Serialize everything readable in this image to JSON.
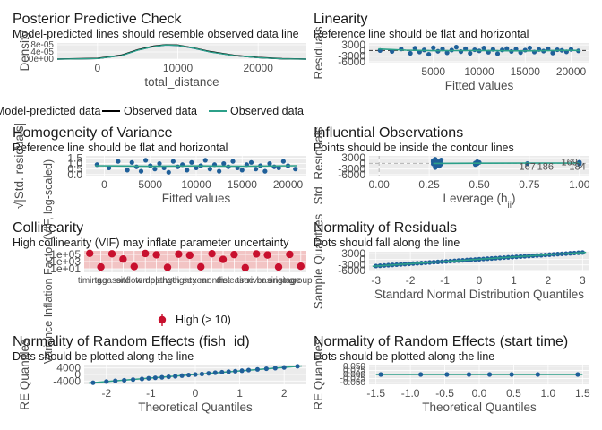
{
  "chart_data": [
    {
      "type": "line",
      "title": "Posterior Predictive Check",
      "subtitle": "Model-predicted lines should resemble observed data line",
      "xlabel": "total_distance",
      "ylabel": "Density",
      "x_ticks": [
        "0",
        "10000",
        "20000"
      ],
      "y_ticks": [
        "0e+00",
        "4e-05",
        "8e-05"
      ],
      "xlim": [
        -5000,
        26000
      ],
      "ylim": [
        0,
        9e-05
      ],
      "legend": [
        "Model-predicted data",
        "Observed data",
        "Observed data"
      ],
      "legend_position": "bottom",
      "series": [
        {
          "name": "Model-predicted data",
          "color": "#1f77b4",
          "x": [
            -5000,
            0,
            3000,
            5000,
            7000,
            8500,
            10000,
            12000,
            14000,
            17000,
            20000,
            23000,
            26000
          ],
          "y": [
            0,
            3e-06,
            2e-05,
            5e-05,
            7e-05,
            7.8e-05,
            7.6e-05,
            6e-05,
            4e-05,
            2e-05,
            8e-06,
            2e-06,
            0
          ]
        },
        {
          "name": "Observed data",
          "color": "#000000",
          "x": [
            -5000,
            0,
            3000,
            5000,
            7000,
            8500,
            10000,
            12000,
            14000,
            17000,
            20000,
            23000,
            26000
          ],
          "y": [
            0,
            4e-06,
            2.2e-05,
            5.2e-05,
            7.2e-05,
            8e-05,
            7.8e-05,
            6.2e-05,
            4.2e-05,
            2.1e-05,
            9e-06,
            2e-06,
            0
          ]
        },
        {
          "name": "Observed data",
          "color": "#2ca089",
          "x": [
            -5000,
            0,
            3000,
            5000,
            7000,
            8500,
            10000,
            12000,
            14000,
            17000,
            20000,
            23000,
            26000
          ],
          "y": [
            0,
            3e-06,
            2e-05,
            5e-05,
            7e-05,
            7.9e-05,
            7.7e-05,
            6.1e-05,
            4e-05,
            2e-05,
            8e-06,
            2e-06,
            0
          ]
        }
      ]
    },
    {
      "type": "scatter",
      "title": "Linearity",
      "subtitle": "Reference line should be flat and horizontal",
      "xlabel": "Fitted values",
      "ylabel": "Residuals",
      "x_ticks": [
        "5000",
        "10000",
        "15000",
        "20000"
      ],
      "y_ticks": [
        "-6000",
        "-3000",
        "0",
        "3000"
      ],
      "xlim": [
        -2000,
        22000
      ],
      "ylim": [
        -6500,
        4000
      ],
      "point_color": "#1f5f99",
      "line_color": "#2ca089",
      "points": [
        [
          -800,
          0
        ],
        [
          500,
          -500
        ],
        [
          1500,
          800
        ],
        [
          2500,
          -1500
        ],
        [
          3000,
          1200
        ],
        [
          3500,
          -800
        ],
        [
          4000,
          300
        ],
        [
          4500,
          -2000
        ],
        [
          5000,
          1500
        ],
        [
          5500,
          -400
        ],
        [
          6000,
          800
        ],
        [
          6500,
          -1200
        ],
        [
          7000,
          200
        ],
        [
          7500,
          1800
        ],
        [
          8000,
          -600
        ],
        [
          8500,
          900
        ],
        [
          9000,
          -1500
        ],
        [
          9500,
          400
        ],
        [
          10000,
          -200
        ],
        [
          10500,
          1300
        ],
        [
          11000,
          -900
        ],
        [
          11500,
          600
        ],
        [
          12000,
          -1700
        ],
        [
          12500,
          300
        ],
        [
          13000,
          1000
        ],
        [
          13500,
          -500
        ],
        [
          14000,
          700
        ],
        [
          14500,
          -1100
        ],
        [
          15000,
          200
        ],
        [
          15500,
          1400
        ],
        [
          16000,
          -800
        ],
        [
          16500,
          500
        ],
        [
          17000,
          -300
        ],
        [
          17500,
          900
        ],
        [
          18000,
          -1300
        ],
        [
          18500,
          400
        ],
        [
          19000,
          100
        ],
        [
          19500,
          -700
        ],
        [
          20000,
          600
        ],
        [
          20800,
          -200
        ]
      ],
      "smooth": [
        [
          -1000,
          800
        ],
        [
          2000,
          200
        ],
        [
          5000,
          -100
        ],
        [
          10000,
          0
        ],
        [
          15000,
          -200
        ],
        [
          20000,
          100
        ],
        [
          21000,
          0
        ]
      ]
    },
    {
      "type": "scatter",
      "title": "Homogeneity of Variance",
      "subtitle": "Reference line should be flat and horizontal",
      "xlabel": "Fitted values",
      "ylabel": "√|Std. residuals|",
      "x_ticks": [
        "0",
        "5000",
        "10000",
        "15000",
        "20000"
      ],
      "y_ticks": [
        "0.0",
        "0.5",
        "1.0",
        "1.5"
      ],
      "xlim": [
        -2000,
        22000
      ],
      "ylim": [
        -0.1,
        1.7
      ],
      "point_color": "#1f5f99",
      "line_color": "#2ca089",
      "points": [
        [
          -800,
          0.9
        ],
        [
          500,
          0.6
        ],
        [
          1500,
          1.2
        ],
        [
          2500,
          0.4
        ],
        [
          3000,
          1.1
        ],
        [
          3500,
          0.7
        ],
        [
          4000,
          0.3
        ],
        [
          4500,
          1.3
        ],
        [
          5000,
          0.8
        ],
        [
          5500,
          0.5
        ],
        [
          6000,
          1.0
        ],
        [
          6500,
          0.6
        ],
        [
          7000,
          0.2
        ],
        [
          7500,
          1.2
        ],
        [
          8000,
          0.7
        ],
        [
          8500,
          0.9
        ],
        [
          9000,
          0.4
        ],
        [
          9500,
          1.1
        ],
        [
          10000,
          0.6
        ],
        [
          10500,
          0.8
        ],
        [
          11000,
          1.3
        ],
        [
          11500,
          0.5
        ],
        [
          12000,
          0.9
        ],
        [
          12500,
          0.3
        ],
        [
          13000,
          1.0
        ],
        [
          13500,
          0.7
        ],
        [
          14000,
          1.2
        ],
        [
          14500,
          0.6
        ],
        [
          15000,
          0.4
        ],
        [
          15500,
          0.9
        ],
        [
          16000,
          1.1
        ],
        [
          16500,
          0.5
        ],
        [
          17000,
          0.8
        ],
        [
          17500,
          0.3
        ],
        [
          18000,
          1.0
        ],
        [
          18500,
          0.7
        ],
        [
          19000,
          0.6
        ],
        [
          19500,
          1.2
        ],
        [
          20000,
          0.8
        ],
        [
          20800,
          0.5
        ]
      ],
      "smooth": [
        [
          -1000,
          0.8
        ],
        [
          5000,
          0.75
        ],
        [
          10000,
          0.78
        ],
        [
          15000,
          0.76
        ],
        [
          21000,
          0.8
        ]
      ]
    },
    {
      "type": "scatter",
      "title": "Influential Observations",
      "subtitle": "Points should be inside the contour lines",
      "xlabel": "Leverage (h",
      "xlabel_sub": "ii",
      "xlabel_end": ")",
      "ylabel": "Std. Residuals",
      "x_ticks": [
        "0.00",
        "0.25",
        "0.50",
        "0.75",
        "1.00"
      ],
      "y_ticks": [
        "-6000",
        "-3000",
        "0",
        "3000"
      ],
      "xlim": [
        -0.05,
        1.05
      ],
      "ylim": [
        -6500,
        4000
      ],
      "point_color": "#1f5f99",
      "line_color": "#2ca089",
      "contour_color": "#b3b3b3",
      "points": [
        [
          0.27,
          800
        ],
        [
          0.27,
          -300
        ],
        [
          0.27,
          1500
        ],
        [
          0.28,
          -1200
        ],
        [
          0.28,
          400
        ],
        [
          0.28,
          2200
        ],
        [
          0.28,
          -2200
        ],
        [
          0.29,
          0
        ],
        [
          0.29,
          1100
        ],
        [
          0.29,
          -700
        ],
        [
          0.3,
          300
        ],
        [
          0.3,
          -1500
        ],
        [
          0.31,
          1800
        ],
        [
          0.31,
          -400
        ],
        [
          0.48,
          200
        ],
        [
          0.48,
          -600
        ],
        [
          0.49,
          900
        ],
        [
          0.49,
          -200
        ],
        [
          0.5,
          500
        ],
        [
          0.74,
          -100
        ],
        [
          1.0,
          600
        ],
        [
          1.0,
          -300
        ],
        [
          1.0,
          200
        ]
      ],
      "smooth": [
        [
          0.27,
          0
        ],
        [
          0.5,
          100
        ],
        [
          0.75,
          150
        ],
        [
          1.0,
          200
        ]
      ],
      "labels": [
        {
          "text": "167",
          "x": 0.74,
          "y": -1500,
          "color": "#1f5f99"
        },
        {
          "text": "186",
          "x": 0.83,
          "y": -1500,
          "color": "#d7301f"
        },
        {
          "text": "169",
          "x": 0.95,
          "y": 1000,
          "color": "#d7301f"
        },
        {
          "text": "184",
          "x": 0.99,
          "y": -1500,
          "color": "#d7301f"
        }
      ]
    },
    {
      "type": "scatter",
      "title": "Collinearity",
      "subtitle": "High collinearity (VIF) may inflate parameter uncertainty",
      "xlabel": "",
      "ylabel": "Variance Inflation Factor (VIF, log-scaled)",
      "y_ticks": [
        "1e+01",
        "1e+03",
        "1e+05"
      ],
      "y_scale": "log",
      "ylim": [
        1,
        1000000
      ],
      "band_color": "#f2c4c4",
      "point_color": "#c8102e",
      "legend": [
        "High (≥ 10)"
      ],
      "legend_position": "bottom",
      "categories": [
        "timing",
        "tag",
        "season",
        "site",
        "flow",
        "temp",
        "depth",
        "length",
        "weight",
        "sex",
        "year",
        "month",
        "dist",
        "release",
        "time",
        "river",
        "basin",
        "origin",
        "stage",
        "group"
      ],
      "values": [
        200000,
        30,
        150000,
        5000,
        40,
        180000,
        80000,
        25,
        120000,
        60000,
        35,
        160000,
        4000,
        90000,
        20,
        140000,
        70000,
        30,
        100000,
        50
      ]
    },
    {
      "type": "scatter",
      "title": "Normality of Residuals",
      "subtitle": "Dots should fall along the line",
      "xlabel": "Standard Normal Distribution Quantiles",
      "ylabel": "Sample Quantiles",
      "x_ticks": [
        "-3",
        "-2",
        "-1",
        "0",
        "1",
        "2",
        "3"
      ],
      "y_ticks": [
        "-6000",
        "-3000",
        "0",
        "3000"
      ],
      "xlim": [
        -3.2,
        3.2
      ],
      "ylim": [
        -6500,
        4000
      ],
      "point_color": "#1f5f99",
      "line_color": "#2ca089"
    },
    {
      "type": "scatter",
      "title": "Normality of Random Effects (fish_id)",
      "subtitle": "Dots should be plotted along the line",
      "xlabel": "Theoretical Quantiles",
      "ylabel": "RE Quantiles",
      "x_ticks": [
        "-2",
        "-1",
        "0",
        "1",
        "2"
      ],
      "y_ticks": [
        "-4000",
        "0",
        "4000"
      ],
      "xlim": [
        -2.5,
        2.5
      ],
      "ylim": [
        -6000,
        6000
      ],
      "point_color": "#1f5f99",
      "line_color": "#2ca089",
      "points": [
        [
          -2.3,
          -5000
        ],
        [
          -2,
          -4300
        ],
        [
          -1.8,
          -3900
        ],
        [
          -1.6,
          -3500
        ],
        [
          -1.4,
          -3100
        ],
        [
          -1.2,
          -2700
        ],
        [
          -1.05,
          -2300
        ],
        [
          -0.9,
          -2000
        ],
        [
          -0.75,
          -1700
        ],
        [
          -0.6,
          -1400
        ],
        [
          -0.45,
          -1100
        ],
        [
          -0.3,
          -700
        ],
        [
          -0.15,
          -300
        ],
        [
          0,
          0
        ],
        [
          0.15,
          300
        ],
        [
          0.3,
          700
        ],
        [
          0.45,
          1100
        ],
        [
          0.6,
          1400
        ],
        [
          0.75,
          1700
        ],
        [
          0.9,
          2000
        ],
        [
          1.05,
          2300
        ],
        [
          1.2,
          2700
        ],
        [
          1.4,
          3100
        ],
        [
          1.6,
          3500
        ],
        [
          1.8,
          3900
        ],
        [
          2,
          4300
        ],
        [
          2.3,
          5000
        ]
      ]
    },
    {
      "type": "scatter",
      "title": "Normality of Random Effects (start time)",
      "subtitle": "Dots should be plotted along the line",
      "xlabel": "Theoretical Quantiles",
      "ylabel": "RE Quantiles",
      "x_ticks": [
        "-1.5",
        "-1.0",
        "-0.5",
        "0.0",
        "0.5",
        "1.0",
        "1.5"
      ],
      "y_ticks": [
        "-0.050",
        "-0.025",
        "0.000",
        "0.025",
        "0.050"
      ],
      "xlim": [
        -1.6,
        1.6
      ],
      "ylim": [
        -0.06,
        0.06
      ],
      "point_color": "#1f5f99",
      "line_color": "#2ca089",
      "points": [
        [
          -1.43,
          0
        ],
        [
          -0.85,
          0
        ],
        [
          -0.47,
          0
        ],
        [
          -0.15,
          0
        ],
        [
          0.15,
          0
        ],
        [
          0.47,
          0
        ],
        [
          0.85,
          0
        ],
        [
          1.43,
          0
        ]
      ]
    }
  ]
}
